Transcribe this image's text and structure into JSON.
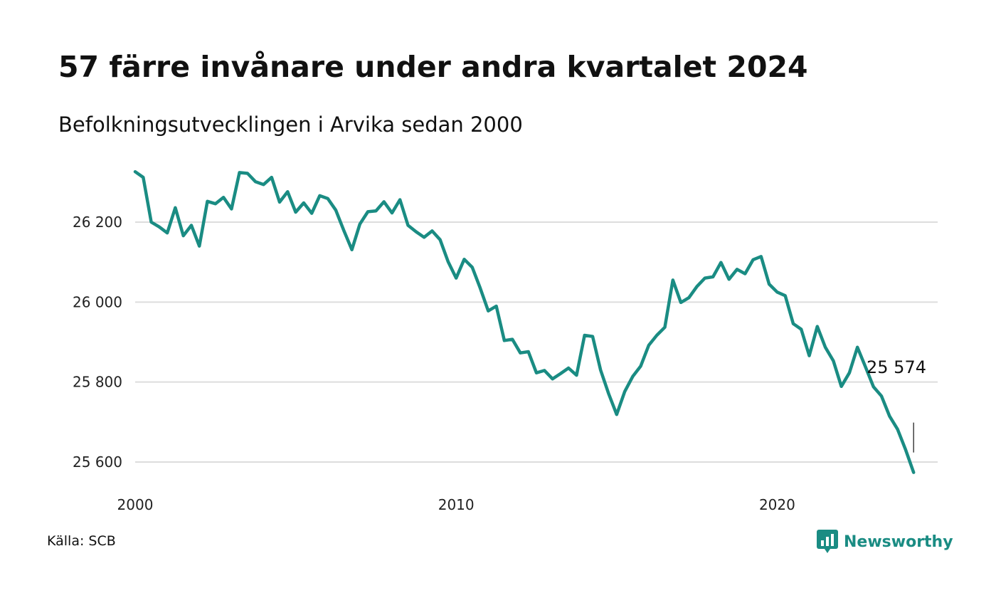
{
  "title": "57 färre invånare under andra kvartalet 2024",
  "subtitle": "Befolkningsutvecklingen i Arvika sedan 2000",
  "source": "Källa: SCB",
  "brand": "Newsworthy",
  "colors": {
    "line": "#1a8c83",
    "grid": "#dddddd",
    "brand": "#1a8c83"
  },
  "icons": {
    "brand_logo": "chart-speech-bubble-icon"
  },
  "chart_data": {
    "type": "line",
    "title": "57 färre invånare under andra kvartalet 2024",
    "subtitle": "Befolkningsutvecklingen i Arvika sedan 2000",
    "xlabel": "",
    "ylabel": "",
    "xlim": [
      2000,
      2025
    ],
    "ylim": [
      25570,
      26330
    ],
    "x_ticks": [
      2000,
      2010,
      2020
    ],
    "x_tick_labels": [
      "2000",
      "2010",
      "2020"
    ],
    "y_ticks": [
      25600,
      25800,
      26000,
      26200
    ],
    "y_tick_labels": [
      "25 600",
      "25 800",
      "26 000",
      "26 200"
    ],
    "grid": true,
    "end_label": "25 574",
    "x": [
      2000.0,
      2000.25,
      2000.5,
      2000.75,
      2001.0,
      2001.25,
      2001.5,
      2001.75,
      2002.0,
      2002.25,
      2002.5,
      2002.75,
      2003.0,
      2003.25,
      2003.5,
      2003.75,
      2004.0,
      2004.25,
      2004.5,
      2004.75,
      2005.0,
      2005.25,
      2005.5,
      2005.75,
      2006.0,
      2006.25,
      2006.5,
      2006.75,
      2007.0,
      2007.25,
      2007.5,
      2007.75,
      2008.0,
      2008.25,
      2008.5,
      2008.75,
      2009.0,
      2009.25,
      2009.5,
      2009.75,
      2010.0,
      2010.25,
      2010.5,
      2010.75,
      2011.0,
      2011.25,
      2011.5,
      2011.75,
      2012.0,
      2012.25,
      2012.5,
      2012.75,
      2013.0,
      2013.25,
      2013.5,
      2013.75,
      2014.0,
      2014.25,
      2014.5,
      2014.75,
      2015.0,
      2015.25,
      2015.5,
      2015.75,
      2016.0,
      2016.25,
      2016.5,
      2016.75,
      2017.0,
      2017.25,
      2017.5,
      2017.75,
      2018.0,
      2018.25,
      2018.5,
      2018.75,
      2019.0,
      2019.25,
      2019.5,
      2019.75,
      2020.0,
      2020.25,
      2020.5,
      2020.75,
      2021.0,
      2021.25,
      2021.5,
      2021.75,
      2022.0,
      2022.25,
      2022.5,
      2022.75,
      2023.0,
      2023.25,
      2023.5,
      2023.75,
      2024.0,
      2024.25
    ],
    "series": [
      {
        "values": [
          26326,
          26312,
          26200,
          26188,
          26173,
          26236,
          26166,
          26192,
          26140,
          26252,
          26246,
          26262,
          26233,
          26324,
          26322,
          26301,
          26294,
          26312,
          26250,
          26276,
          26225,
          26248,
          26222,
          26266,
          26259,
          26230,
          26179,
          26131,
          26195,
          26226,
          26228,
          26251,
          26223,
          26256,
          26192,
          26176,
          26162,
          26178,
          26156,
          26101,
          26060,
          26107,
          26087,
          26035,
          25978,
          25990,
          25904,
          25907,
          25873,
          25876,
          25823,
          25829,
          25808,
          25821,
          25835,
          25817,
          25917,
          25914,
          25830,
          25771,
          25719,
          25776,
          25814,
          25840,
          25892,
          25917,
          25937,
          26055,
          25999,
          26011,
          26039,
          26060,
          26063,
          26099,
          26057,
          26082,
          26071,
          26106,
          26114,
          26045,
          26025,
          26016,
          25946,
          25932,
          25866,
          25939,
          25887,
          25853,
          25789,
          25823,
          25887,
          25838,
          25788,
          25765,
          25715,
          25682,
          25631,
          25574
        ]
      }
    ]
  }
}
